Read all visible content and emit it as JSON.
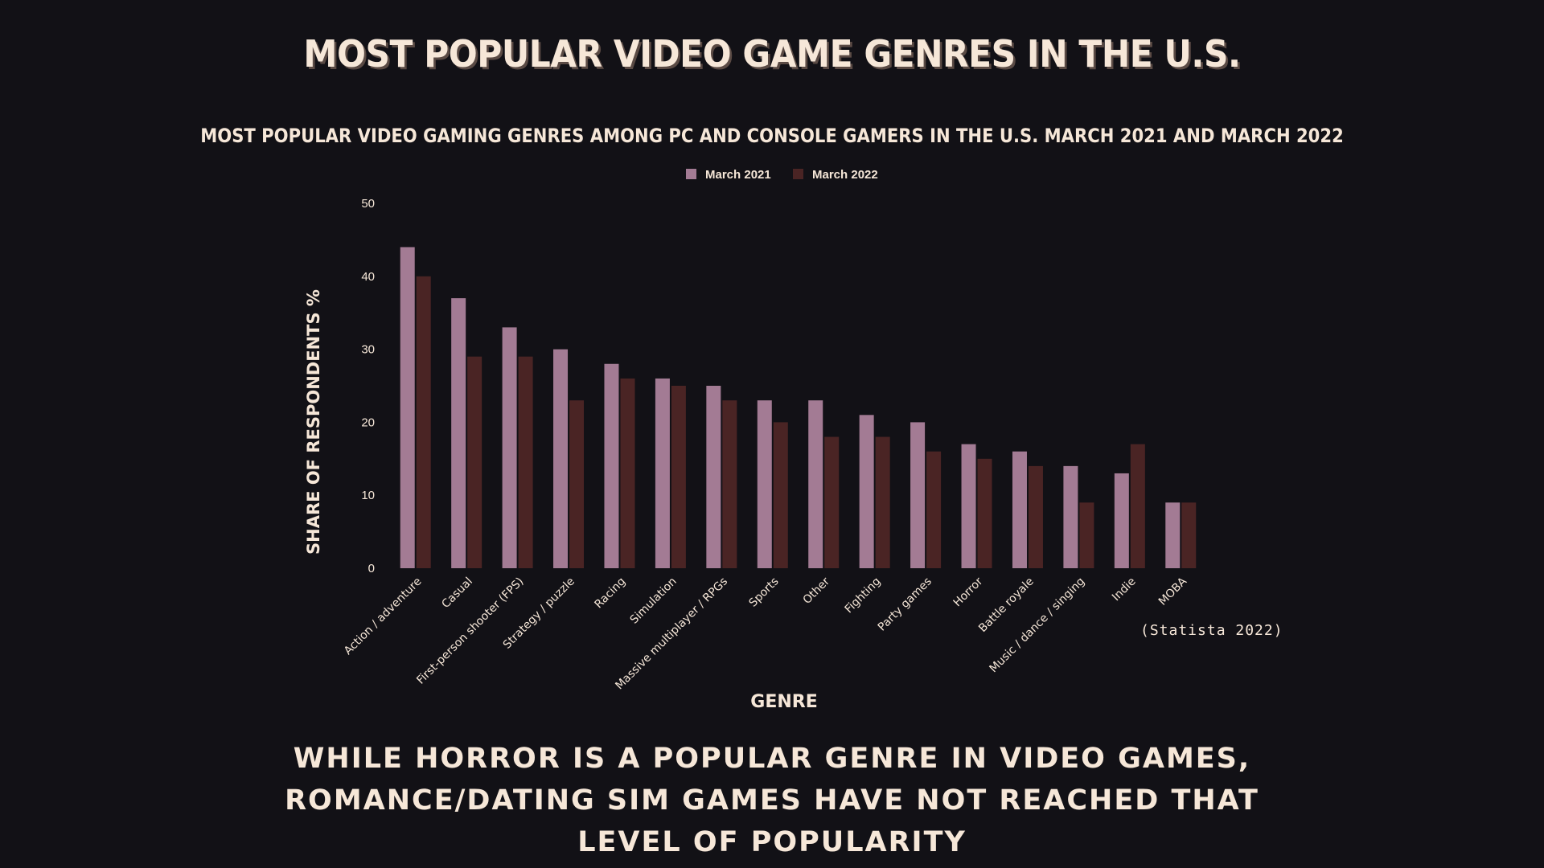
{
  "title": "Most popular video game genres in the U.S.",
  "caption": "While horror is a popular genre in video games, romance/dating sim games have not reached that level of popularity",
  "source": "(Statista 2022)",
  "colors": {
    "background": "#121116",
    "text": "#f6e7d8",
    "march_2021": "#a37b94",
    "march_2022": "#4a2424"
  },
  "chart_data": {
    "type": "bar",
    "title": "Most popular video gaming genres among PC and console gamers in the U.S. March 2021 and March 2022",
    "xlabel": "Genre",
    "ylabel": "Share of respondents %",
    "ylim": [
      0,
      50
    ],
    "yticks": [
      0,
      10,
      20,
      30,
      40,
      50
    ],
    "grid": false,
    "legend_position": "top-center",
    "categories": [
      "Action / adventure",
      "Casual",
      "First-person shooter (FPS)",
      "Strategy / puzzle",
      "Racing",
      "Simulation",
      "Massive multiplayer / RPGs",
      "Sports",
      "Other",
      "Fighting",
      "Party games",
      "Horror",
      "Battle royale",
      "Music / dance / singing",
      "Indie",
      "MOBA"
    ],
    "series": [
      {
        "name": "March 2021",
        "color": "#a37b94",
        "values": [
          44,
          37,
          33,
          30,
          28,
          26,
          25,
          23,
          23,
          21,
          20,
          17,
          16,
          14,
          13,
          9
        ]
      },
      {
        "name": "March 2022",
        "color": "#4a2424",
        "values": [
          40,
          29,
          29,
          23,
          26,
          25,
          23,
          20,
          18,
          18,
          16,
          15,
          14,
          9,
          17,
          9
        ]
      }
    ]
  }
}
